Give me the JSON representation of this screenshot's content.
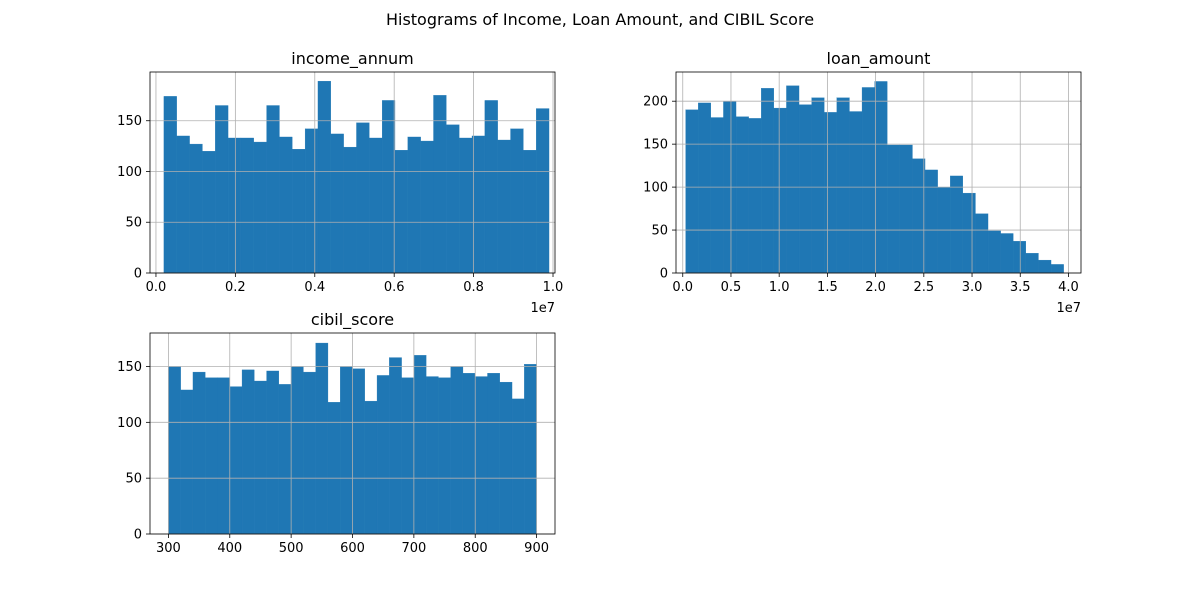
{
  "suptitle": "Histograms of Income, Loan Amount, and CIBIL Score",
  "bar_color": "#1f77b4",
  "grid_color": "#b0b0b0",
  "chart_data": [
    {
      "type": "bar",
      "title": "income_annum",
      "grid": true,
      "xlim": [
        -150000,
        10050000
      ],
      "ylim": [
        0,
        198
      ],
      "xticks": [
        0,
        2000000,
        4000000,
        6000000,
        8000000,
        10000000
      ],
      "xtick_labels": [
        "0.0",
        "0.2",
        "0.4",
        "0.6",
        "0.8",
        "1.0"
      ],
      "x_offset_label": "1e7",
      "yticks": [
        0,
        50,
        100,
        150
      ],
      "bin_start": 200000,
      "bin_end": 9900000,
      "values": [
        174,
        135,
        127,
        120,
        165,
        133,
        133,
        129,
        165,
        134,
        122,
        142,
        189,
        137,
        124,
        148,
        133,
        170,
        121,
        134,
        130,
        175,
        146,
        133,
        135,
        170,
        131,
        142,
        121,
        162
      ]
    },
    {
      "type": "bar",
      "title": "loan_amount",
      "grid": true,
      "xlim": [
        -700000,
        41300000
      ],
      "ylim": [
        0,
        234
      ],
      "xticks": [
        0,
        5000000,
        10000000,
        15000000,
        20000000,
        25000000,
        30000000,
        35000000,
        40000000
      ],
      "xtick_labels": [
        "0.0",
        "0.5",
        "1.0",
        "1.5",
        "2.0",
        "2.5",
        "3.0",
        "3.5",
        "4.0"
      ],
      "x_offset_label": "1e7",
      "yticks": [
        0,
        50,
        100,
        150,
        200
      ],
      "bin_start": 300000,
      "bin_end": 39500000,
      "values": [
        190,
        198,
        181,
        200,
        182,
        180,
        215,
        192,
        218,
        196,
        204,
        187,
        204,
        188,
        216,
        223,
        149,
        149,
        133,
        120,
        100,
        113,
        93,
        69,
        49,
        46,
        37,
        23,
        15,
        10
      ]
    },
    {
      "type": "bar",
      "title": "cibil_score",
      "grid": true,
      "xlim": [
        270,
        930
      ],
      "ylim": [
        0,
        180
      ],
      "xticks": [
        300,
        400,
        500,
        600,
        700,
        800,
        900
      ],
      "xtick_labels": [
        "300",
        "400",
        "500",
        "600",
        "700",
        "800",
        "900"
      ],
      "yticks": [
        0,
        50,
        100,
        150
      ],
      "bin_start": 300,
      "bin_end": 900,
      "values": [
        150,
        129,
        145,
        140,
        140,
        132,
        147,
        137,
        146,
        134,
        150,
        145,
        171,
        118,
        150,
        148,
        119,
        142,
        158,
        140,
        160,
        141,
        140,
        150,
        144,
        141,
        144,
        136,
        121,
        152
      ]
    }
  ]
}
